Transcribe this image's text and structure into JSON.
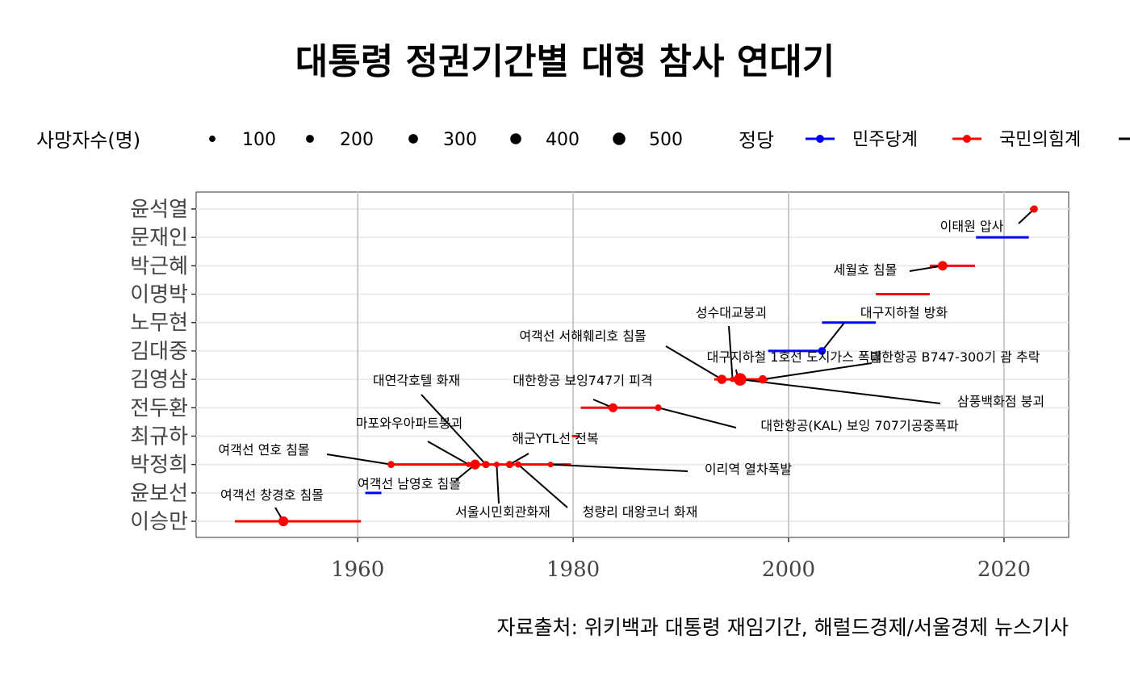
{
  "title": "대통령 정권기간별 대형 참사 연대기",
  "caption": "자료출처: 위키백과 대통령 재임기간, 해럴드경제/서울경제 뉴스기사",
  "legend": {
    "size_title": "사망자수(명)",
    "size_items": [
      "100",
      "200",
      "300",
      "400",
      "500"
    ],
    "party_title": "정당",
    "party_items": [
      {
        "name": "민주당계",
        "color": "#0000ff"
      },
      {
        "name": "국민의힘계",
        "color": "#ff0000"
      }
    ]
  },
  "chart_data": {
    "type": "scatter",
    "title": "대통령 정권기간별 대형 참사 연대기",
    "xlabel": "",
    "ylabel": "",
    "xlim": [
      1945,
      2026
    ],
    "xticks": [
      1960,
      1980,
      2000,
      2020
    ],
    "grid": true,
    "legend_position": "top",
    "presidents": [
      {
        "name": "이승만",
        "start": 1948.6,
        "end": 1960.3,
        "party": "국민의힘계"
      },
      {
        "name": "윤보선",
        "start": 1960.7,
        "end": 1962.2,
        "party": "민주당계"
      },
      {
        "name": "박정희",
        "start": 1963.0,
        "end": 1979.8,
        "party": "국민의힘계"
      },
      {
        "name": "최규하",
        "start": 1979.9,
        "end": 1980.6,
        "party": "국민의힘계"
      },
      {
        "name": "전두환",
        "start": 1980.7,
        "end": 1988.1,
        "party": "국민의힘계"
      },
      {
        "name": "김영삼",
        "start": 1993.1,
        "end": 1998.1,
        "party": "국민의힘계"
      },
      {
        "name": "김대중",
        "start": 1998.1,
        "end": 2003.1,
        "party": "민주당계"
      },
      {
        "name": "노무현",
        "start": 2003.1,
        "end": 2008.1,
        "party": "민주당계"
      },
      {
        "name": "이명박",
        "start": 2008.1,
        "end": 2013.1,
        "party": "국민의힘계"
      },
      {
        "name": "박근혜",
        "start": 2013.1,
        "end": 2017.3,
        "party": "국민의힘계"
      },
      {
        "name": "문재인",
        "start": 2017.4,
        "end": 2022.3,
        "party": "민주당계"
      },
      {
        "name": "윤석열",
        "start": 2022.4,
        "end": 2023.0,
        "party": "국민의힘계"
      }
    ],
    "disasters": [
      {
        "name": "여객선 창경호 침몰",
        "year": 1953.1,
        "president": "이승만",
        "deaths": 330
      },
      {
        "name": "여객선 남영호 침몰",
        "year": 1970.9,
        "president": "박정희",
        "deaths": 326
      },
      {
        "name": "여객선 연호 침몰",
        "year": 1963.1,
        "president": "박정희",
        "deaths": 140
      },
      {
        "name": "마포와우아파트붕괴",
        "year": 1970.3,
        "president": "박정희",
        "deaths": 33
      },
      {
        "name": "대연각호텔 화재",
        "year": 1971.9,
        "president": "박정희",
        "deaths": 163
      },
      {
        "name": "서울시민회관화재",
        "year": 1972.9,
        "president": "박정희",
        "deaths": 53
      },
      {
        "name": "해군YTL선 전복",
        "year": 1974.1,
        "president": "박정희",
        "deaths": 159
      },
      {
        "name": "청량리 대왕코너 화재",
        "year": 1974.9,
        "president": "박정희",
        "deaths": 88
      },
      {
        "name": "이리역 열차폭발",
        "year": 1977.9,
        "president": "박정희",
        "deaths": 59
      },
      {
        "name": "대한항공 보잉747기 피격",
        "year": 1983.7,
        "president": "전두환",
        "deaths": 269
      },
      {
        "name": "대한항공(KAL) 보잉 707기공중폭파",
        "year": 1987.9,
        "president": "전두환",
        "deaths": 115
      },
      {
        "name": "여객선 서해훼리호 침몰",
        "year": 1993.8,
        "president": "김영삼",
        "deaths": 292
      },
      {
        "name": "성수대교붕괴",
        "year": 1994.8,
        "president": "김영삼",
        "deaths": 32
      },
      {
        "name": "대구지하철 1호선 도시가스 폭발",
        "year": 1995.3,
        "president": "김영삼",
        "deaths": 101
      },
      {
        "name": "삼풍백화점 붕괴",
        "year": 1995.5,
        "president": "김영삼",
        "deaths": 502
      },
      {
        "name": "대한항공 B747-300기 괌 추락",
        "year": 1997.6,
        "president": "김영삼",
        "deaths": 228
      },
      {
        "name": "대구지하철 방화",
        "year": 2003.1,
        "president": "김대중",
        "deaths": 192
      },
      {
        "name": "세월호 침몰",
        "year": 2014.3,
        "president": "박근혜",
        "deaths": 304
      },
      {
        "name": "이태원 압사",
        "year": 2022.8,
        "president": "윤석열",
        "deaths": 159
      }
    ]
  }
}
